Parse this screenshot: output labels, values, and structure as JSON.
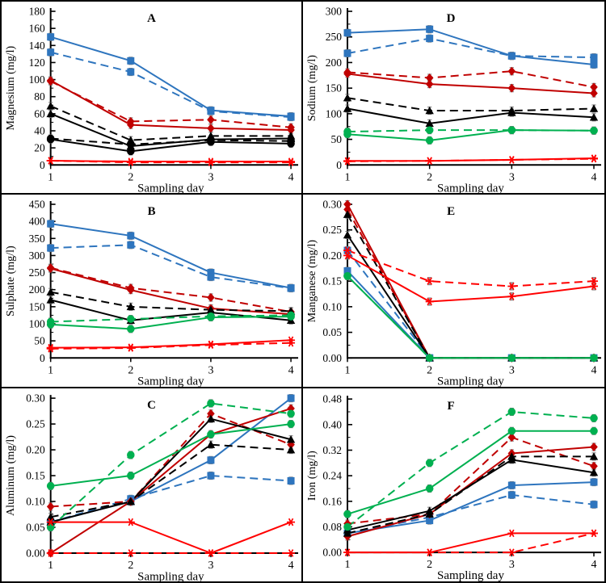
{
  "figure": {
    "background": "#ffffff",
    "border_color": "#000000",
    "layout": "2x3-grid",
    "xlabel": "Sampling day",
    "x_categories": [
      "1",
      "2",
      "3",
      "4"
    ]
  },
  "chart_data": [
    {
      "id": "A",
      "type": "line",
      "title": "A",
      "ylabel": "Magnesium (mg/l)",
      "xlabel": "Sampling day",
      "x": [
        1,
        2,
        3,
        4
      ],
      "ylim": [
        0,
        180
      ],
      "ystep": 20,
      "decimals": 0,
      "axis_x": 61,
      "grid": false,
      "legend": "none",
      "series": [
        {
          "name": "blue-solid-square",
          "color": "#2E75BE",
          "marker": "square",
          "line": "solid",
          "err": true,
          "values": [
            150,
            122,
            64,
            57
          ]
        },
        {
          "name": "blue-dashed-square",
          "color": "#2E75BE",
          "marker": "square",
          "line": "dashed",
          "err": true,
          "values": [
            132,
            109,
            63,
            56
          ]
        },
        {
          "name": "darkred-solid-diamond",
          "color": "#C00000",
          "marker": "diamond",
          "line": "solid",
          "err": true,
          "values": [
            99,
            47,
            43,
            41
          ]
        },
        {
          "name": "darkred-dashed-diamond",
          "color": "#C00000",
          "marker": "diamond",
          "line": "dashed",
          "err": true,
          "values": [
            98,
            51,
            53,
            44
          ]
        },
        {
          "name": "black-solid-triangle",
          "color": "#000000",
          "marker": "triangle",
          "line": "solid",
          "err": true,
          "values": [
            60,
            22,
            30,
            31
          ]
        },
        {
          "name": "black-dashed-triangle",
          "color": "#000000",
          "marker": "triangle",
          "line": "dashed",
          "err": true,
          "values": [
            69,
            29,
            34,
            34
          ]
        },
        {
          "name": "black-solid-circle",
          "color": "#000000",
          "marker": "circle",
          "line": "solid",
          "err": true,
          "values": [
            30,
            16,
            27,
            25
          ]
        },
        {
          "name": "black-dashed-circle",
          "color": "#000000",
          "marker": "circle",
          "line": "dashed",
          "err": true,
          "values": [
            31,
            24,
            29,
            28
          ]
        },
        {
          "name": "red-solid-asterisk",
          "color": "#FF0000",
          "marker": "asterisk",
          "line": "solid",
          "err": false,
          "values": [
            5,
            4,
            4,
            4
          ]
        },
        {
          "name": "red-dashed-asterisk",
          "color": "#FF0000",
          "marker": "asterisk",
          "line": "dashed",
          "err": false,
          "values": [
            5,
            3,
            3,
            3
          ]
        }
      ]
    },
    {
      "id": "D",
      "type": "line",
      "title": "D",
      "ylabel": "Sodium (mg/l)",
      "xlabel": "Sampling day",
      "x": [
        1,
        2,
        3,
        4
      ],
      "ylim": [
        0,
        300
      ],
      "ystep": 50,
      "decimals": 0,
      "axis_x": 55,
      "grid": false,
      "legend": "none",
      "series": [
        {
          "name": "blue-solid-square",
          "color": "#2E75BE",
          "marker": "square",
          "line": "solid",
          "err": true,
          "values": [
            258,
            265,
            213,
            196
          ]
        },
        {
          "name": "blue-dashed-square",
          "color": "#2E75BE",
          "marker": "square",
          "line": "dashed",
          "err": true,
          "values": [
            218,
            247,
            213,
            210
          ]
        },
        {
          "name": "darkred-solid-diamond",
          "color": "#C00000",
          "marker": "diamond",
          "line": "solid",
          "err": true,
          "values": [
            178,
            158,
            150,
            140
          ]
        },
        {
          "name": "darkred-dashed-diamond",
          "color": "#C00000",
          "marker": "diamond",
          "line": "dashed",
          "err": true,
          "values": [
            181,
            170,
            183,
            152
          ]
        },
        {
          "name": "black-solid-triangle",
          "color": "#000000",
          "marker": "triangle",
          "line": "solid",
          "err": true,
          "values": [
            110,
            81,
            102,
            93
          ]
        },
        {
          "name": "black-dashed-triangle",
          "color": "#000000",
          "marker": "triangle",
          "line": "dashed",
          "err": true,
          "values": [
            131,
            106,
            106,
            110
          ]
        },
        {
          "name": "green-solid-circle",
          "color": "#00B050",
          "marker": "circle",
          "line": "solid",
          "err": true,
          "values": [
            60,
            48,
            68,
            67
          ]
        },
        {
          "name": "green-dashed-circle",
          "color": "#00B050",
          "marker": "circle",
          "line": "dashed",
          "err": true,
          "values": [
            65,
            68,
            68,
            67
          ]
        },
        {
          "name": "red-solid-asterisk",
          "color": "#FF0000",
          "marker": "asterisk",
          "line": "solid",
          "err": false,
          "values": [
            8,
            8,
            10,
            13
          ]
        },
        {
          "name": "red-dashed-asterisk",
          "color": "#FF0000",
          "marker": "asterisk",
          "line": "dashed",
          "err": false,
          "values": [
            7,
            8,
            10,
            12
          ]
        }
      ]
    },
    {
      "id": "B",
      "type": "line",
      "title": "B",
      "ylabel": "Sulphate (mg/l)",
      "xlabel": "Sampling day",
      "x": [
        1,
        2,
        3,
        4
      ],
      "ylim": [
        0,
        450
      ],
      "ystep": 50,
      "decimals": 0,
      "axis_x": 61,
      "grid": false,
      "legend": "none",
      "series": [
        {
          "name": "blue-solid-square",
          "color": "#2E75BE",
          "marker": "square",
          "line": "solid",
          "err": true,
          "values": [
            393,
            358,
            250,
            205
          ]
        },
        {
          "name": "blue-dashed-square",
          "color": "#2E75BE",
          "marker": "square",
          "line": "dashed",
          "err": true,
          "values": [
            322,
            331,
            237,
            204
          ]
        },
        {
          "name": "darkred-solid-diamond",
          "color": "#C00000",
          "marker": "diamond",
          "line": "solid",
          "err": true,
          "values": [
            262,
            199,
            145,
            128
          ]
        },
        {
          "name": "darkred-dashed-diamond",
          "color": "#C00000",
          "marker": "diamond",
          "line": "dashed",
          "err": true,
          "values": [
            264,
            205,
            177,
            135
          ]
        },
        {
          "name": "black-solid-triangle",
          "color": "#000000",
          "marker": "triangle",
          "line": "solid",
          "err": true,
          "values": [
            170,
            110,
            133,
            110
          ]
        },
        {
          "name": "black-dashed-triangle",
          "color": "#000000",
          "marker": "triangle",
          "line": "dashed",
          "err": true,
          "values": [
            193,
            150,
            141,
            137
          ]
        },
        {
          "name": "green-solid-circle",
          "color": "#00B050",
          "marker": "circle",
          "line": "solid",
          "err": true,
          "values": [
            98,
            85,
            119,
            121
          ]
        },
        {
          "name": "green-dashed-circle",
          "color": "#00B050",
          "marker": "circle",
          "line": "dashed",
          "err": true,
          "values": [
            106,
            114,
            122,
            125
          ]
        },
        {
          "name": "red-solid-asterisk",
          "color": "#FF0000",
          "marker": "asterisk",
          "line": "solid",
          "err": false,
          "values": [
            30,
            31,
            40,
            52
          ]
        },
        {
          "name": "red-dashed-asterisk",
          "color": "#FF0000",
          "marker": "asterisk",
          "line": "dashed",
          "err": false,
          "values": [
            27,
            29,
            38,
            44
          ]
        }
      ]
    },
    {
      "id": "E",
      "type": "line",
      "title": "E",
      "ylabel": "Manganese (mg/l)",
      "xlabel": "Sampling day",
      "x": [
        1,
        2,
        3,
        4
      ],
      "ylim": [
        0,
        0.3
      ],
      "ystep": 0.05,
      "decimals": 2,
      "axis_x": 55,
      "grid": false,
      "legend": "none",
      "series": [
        {
          "name": "blue-solid-square",
          "color": "#2E75BE",
          "marker": "square",
          "line": "solid",
          "err": true,
          "values": [
            0.17,
            0,
            0,
            0
          ]
        },
        {
          "name": "blue-dashed-square",
          "color": "#2E75BE",
          "marker": "square",
          "line": "dashed",
          "err": true,
          "values": [
            0.21,
            0,
            0,
            0
          ]
        },
        {
          "name": "darkred-solid-diamond",
          "color": "#C00000",
          "marker": "diamond",
          "line": "solid",
          "err": true,
          "values": [
            0.3,
            0,
            0,
            0
          ]
        },
        {
          "name": "darkred-dashed-diamond",
          "color": "#C00000",
          "marker": "diamond",
          "line": "dashed",
          "err": true,
          "values": [
            0.29,
            0,
            0,
            0
          ]
        },
        {
          "name": "black-solid-triangle",
          "color": "#000000",
          "marker": "triangle",
          "line": "solid",
          "err": true,
          "values": [
            0.24,
            0,
            0,
            0
          ]
        },
        {
          "name": "black-dashed-triangle",
          "color": "#000000",
          "marker": "triangle",
          "line": "dashed",
          "err": true,
          "values": [
            0.28,
            0,
            0,
            0
          ]
        },
        {
          "name": "green-solid-circle",
          "color": "#00B050",
          "marker": "circle",
          "line": "solid",
          "err": true,
          "values": [
            0.16,
            0,
            0,
            0
          ]
        },
        {
          "name": "green-dashed-circle",
          "color": "#00B050",
          "marker": "circle",
          "line": "dashed",
          "err": true,
          "values": [
            0.16,
            0,
            0,
            0
          ]
        },
        {
          "name": "red-solid-asterisk",
          "color": "#FF0000",
          "marker": "asterisk",
          "line": "solid",
          "err": true,
          "values": [
            0.2,
            0.11,
            0.12,
            0.14
          ]
        },
        {
          "name": "red-dashed-asterisk",
          "color": "#FF0000",
          "marker": "asterisk",
          "line": "dashed",
          "err": true,
          "values": [
            0.21,
            0.15,
            0.14,
            0.15
          ]
        }
      ]
    },
    {
      "id": "C",
      "type": "line",
      "title": "C",
      "ylabel": "Aluminum (mg/l)",
      "xlabel": "Sampling day",
      "x": [
        1,
        2,
        3,
        4
      ],
      "ylim": [
        0,
        0.3
      ],
      "ystep": 0.05,
      "decimals": 2,
      "axis_x": 61,
      "grid": false,
      "legend": "none",
      "series": [
        {
          "name": "blue-solid-square",
          "color": "#2E75BE",
          "marker": "square",
          "line": "solid",
          "err": true,
          "values": [
            0.06,
            0.1,
            0.18,
            0.3
          ]
        },
        {
          "name": "blue-dashed-square",
          "color": "#2E75BE",
          "marker": "square",
          "line": "dashed",
          "err": true,
          "values": [
            0.06,
            0.105,
            0.15,
            0.14
          ]
        },
        {
          "name": "darkred-solid-diamond",
          "color": "#C00000",
          "marker": "diamond",
          "line": "solid",
          "err": true,
          "values": [
            0.0,
            0.1,
            0.23,
            0.28
          ]
        },
        {
          "name": "darkred-dashed-diamond",
          "color": "#C00000",
          "marker": "diamond",
          "line": "dashed",
          "err": true,
          "values": [
            0.09,
            0.1,
            0.27,
            0.21
          ]
        },
        {
          "name": "black-solid-triangle",
          "color": "#000000",
          "marker": "triangle",
          "line": "solid",
          "err": true,
          "values": [
            0.06,
            0.1,
            0.26,
            0.22
          ]
        },
        {
          "name": "black-dashed-triangle",
          "color": "#000000",
          "marker": "triangle",
          "line": "dashed",
          "err": true,
          "values": [
            0.07,
            0.1,
            0.21,
            0.2
          ]
        },
        {
          "name": "green-solid-circle",
          "color": "#00B050",
          "marker": "circle",
          "line": "solid",
          "err": true,
          "values": [
            0.13,
            0.15,
            0.23,
            0.25
          ]
        },
        {
          "name": "green-dashed-circle",
          "color": "#00B050",
          "marker": "circle",
          "line": "dashed",
          "err": true,
          "values": [
            0.05,
            0.19,
            0.29,
            0.27
          ]
        },
        {
          "name": "red-solid-asterisk",
          "color": "#FF0000",
          "marker": "asterisk",
          "line": "solid",
          "err": false,
          "values": [
            0.06,
            0.06,
            0.0,
            0.06
          ]
        },
        {
          "name": "red-dashed-asterisk",
          "color": "#FF0000",
          "marker": "asterisk",
          "line": "dashed",
          "err": false,
          "values": [
            0,
            0,
            0,
            0
          ]
        }
      ]
    },
    {
      "id": "F",
      "type": "line",
      "title": "F",
      "ylabel": "Iron (mg/l)",
      "xlabel": "Sampling day",
      "x": [
        1,
        2,
        3,
        4
      ],
      "ylim": [
        0,
        0.48
      ],
      "ystep": 0.08,
      "decimals": 2,
      "axis_x": 55,
      "grid": false,
      "legend": "none",
      "series": [
        {
          "name": "blue-solid-square",
          "color": "#2E75BE",
          "marker": "square",
          "line": "solid",
          "err": true,
          "values": [
            0.06,
            0.1,
            0.21,
            0.22
          ]
        },
        {
          "name": "blue-dashed-square",
          "color": "#2E75BE",
          "marker": "square",
          "line": "dashed",
          "err": true,
          "values": [
            0.06,
            0.11,
            0.18,
            0.15
          ]
        },
        {
          "name": "darkred-solid-diamond",
          "color": "#C00000",
          "marker": "diamond",
          "line": "solid",
          "err": true,
          "values": [
            0.05,
            0.12,
            0.31,
            0.33
          ]
        },
        {
          "name": "darkred-dashed-diamond",
          "color": "#C00000",
          "marker": "diamond",
          "line": "dashed",
          "err": true,
          "values": [
            0.09,
            0.12,
            0.36,
            0.27
          ]
        },
        {
          "name": "black-solid-triangle",
          "color": "#000000",
          "marker": "triangle",
          "line": "solid",
          "err": true,
          "values": [
            0.07,
            0.13,
            0.29,
            0.25
          ]
        },
        {
          "name": "black-dashed-triangle",
          "color": "#000000",
          "marker": "triangle",
          "line": "dashed",
          "err": true,
          "values": [
            0.06,
            0.12,
            0.3,
            0.3
          ]
        },
        {
          "name": "green-solid-circle",
          "color": "#00B050",
          "marker": "circle",
          "line": "solid",
          "err": true,
          "values": [
            0.12,
            0.2,
            0.38,
            0.38
          ]
        },
        {
          "name": "green-dashed-circle",
          "color": "#00B050",
          "marker": "circle",
          "line": "dashed",
          "err": true,
          "values": [
            0.08,
            0.28,
            0.44,
            0.42
          ]
        },
        {
          "name": "red-solid-asterisk",
          "color": "#FF0000",
          "marker": "asterisk",
          "line": "solid",
          "err": false,
          "values": [
            0,
            0,
            0.06,
            0.06
          ]
        },
        {
          "name": "red-dashed-asterisk",
          "color": "#FF0000",
          "marker": "asterisk",
          "line": "dashed",
          "err": false,
          "values": [
            0,
            0,
            0,
            0.06
          ]
        }
      ]
    }
  ]
}
